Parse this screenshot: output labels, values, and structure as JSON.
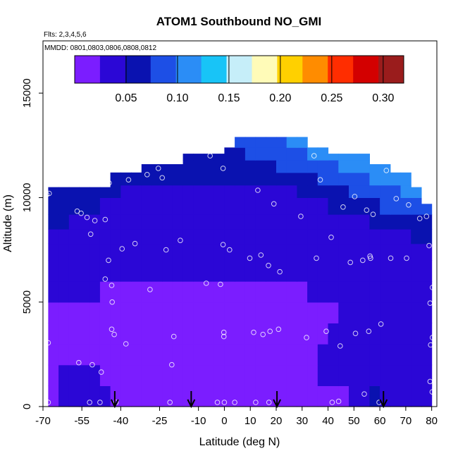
{
  "chart_data": {
    "type": "heatmap",
    "title": "ATOM1 Southbound NO_GMI",
    "annotations": {
      "flights": "Flts: 2,3,4,5,6",
      "dates": "MMDD: 0801,0803,0806,0808,0812"
    },
    "xlabel": "Latitude (deg N)",
    "ylabel": "Altitude (m)",
    "xlim": [
      -70,
      82
    ],
    "ylim": [
      0,
      17500
    ],
    "x_ticks": [
      {
        "value": -70,
        "label": "-70"
      },
      {
        "value": -55,
        "label": "-55"
      },
      {
        "value": -40,
        "label": "-40"
      },
      {
        "value": -25,
        "label": "-25"
      },
      {
        "value": -10,
        "label": "-10"
      },
      {
        "value": 0,
        "label": "0"
      },
      {
        "value": 10,
        "label": "10"
      },
      {
        "value": 20,
        "label": "20"
      },
      {
        "value": 30,
        "label": "30"
      },
      {
        "value": 40,
        "label": "40"
      },
      {
        "value": 50,
        "label": "50"
      },
      {
        "value": 60,
        "label": "60"
      },
      {
        "value": 70,
        "label": "70"
      },
      {
        "value": 80,
        "label": "80"
      }
    ],
    "y_ticks": [
      {
        "value": 0,
        "label": "0"
      },
      {
        "value": 5000,
        "label": "5000"
      },
      {
        "value": 10000,
        "label": "10000"
      },
      {
        "value": 15000,
        "label": "15000"
      }
    ],
    "colorbar": {
      "range": [
        0,
        0.32
      ],
      "tick_values": [
        0.05,
        0.1,
        0.15,
        0.2,
        0.25,
        0.3
      ],
      "tick_labels": [
        "0.05",
        "0.10",
        "0.15",
        "0.20",
        "0.25",
        "0.30"
      ],
      "bins": 13,
      "colors": [
        "#7b1dff",
        "#2b07d6",
        "#0a12b0",
        "#1d4fe6",
        "#2b8df6",
        "#18c4f7",
        "#c6eef9",
        "#fffbb8",
        "#ffd000",
        "#ff8c00",
        "#ff2d00",
        "#d30000",
        "#9a1c1c"
      ]
    },
    "field": {
      "lat_edges": [
        -68,
        -64,
        -60,
        -56,
        -52,
        -48,
        -44,
        -40,
        -36,
        -32,
        -28,
        -24,
        -20,
        -16,
        -12,
        -8,
        -4,
        0,
        4,
        8,
        12,
        16,
        20,
        24,
        28,
        32,
        36,
        40,
        44,
        48,
        52,
        56,
        60,
        64,
        68,
        72,
        76,
        80
      ],
      "alt_edges": [
        0,
        1000,
        2000,
        3000,
        4000,
        5000,
        6000,
        7000,
        7800,
        8500,
        9200,
        10000,
        10600,
        11200,
        11800,
        12400,
        12900,
        13300
      ],
      "tops": [
        10500,
        10500,
        10500,
        10500,
        10500,
        10500,
        11200,
        11200,
        11200,
        11600,
        11600,
        11600,
        11600,
        12100,
        12100,
        12100,
        12100,
        12400,
        12900,
        12900,
        12900,
        12900,
        12900,
        12900,
        12900,
        12400,
        12400,
        12100,
        12100,
        12100,
        12100,
        11600,
        11600,
        11200,
        11200,
        10500,
        9700
      ],
      "values": [
        [
          0.02,
          0.025,
          0.03,
          0.035,
          0.03,
          0.025,
          0.022,
          0.022,
          0.022,
          0.022,
          0.022,
          0.022,
          0.022,
          0.022,
          0.022,
          0.022,
          0.022,
          0.022,
          0.022,
          0.022,
          0.022,
          0.022,
          0.022,
          0.022,
          0.022,
          0.022,
          0.022,
          0.022,
          0.022,
          0.03,
          0.04,
          0.05,
          0.035,
          0.03,
          0.03,
          0.03,
          0.03
        ],
        [
          0.022,
          0.025,
          0.028,
          0.028,
          0.026,
          0.024,
          0.022,
          0.022,
          0.022,
          0.022,
          0.022,
          0.022,
          0.022,
          0.022,
          0.022,
          0.022,
          0.022,
          0.022,
          0.022,
          0.022,
          0.022,
          0.022,
          0.022,
          0.022,
          0.022,
          0.024,
          0.026,
          0.028,
          0.028,
          0.03,
          0.035,
          0.04,
          0.03,
          0.028,
          0.028,
          0.028,
          0.03
        ],
        [
          0.022,
          0.022,
          0.024,
          0.024,
          0.022,
          0.022,
          0.022,
          0.022,
          0.022,
          0.022,
          0.022,
          0.022,
          0.022,
          0.022,
          0.022,
          0.022,
          0.022,
          0.022,
          0.022,
          0.022,
          0.022,
          0.022,
          0.022,
          0.022,
          0.022,
          0.024,
          0.026,
          0.026,
          0.028,
          0.028,
          0.03,
          0.032,
          0.028,
          0.028,
          0.028,
          0.028,
          0.03
        ],
        [
          0.022,
          0.022,
          0.022,
          0.022,
          0.022,
          0.022,
          0.022,
          0.022,
          0.022,
          0.022,
          0.022,
          0.022,
          0.022,
          0.022,
          0.022,
          0.022,
          0.022,
          0.022,
          0.022,
          0.022,
          0.022,
          0.022,
          0.022,
          0.022,
          0.022,
          0.024,
          0.024,
          0.026,
          0.026,
          0.026,
          0.028,
          0.028,
          0.028,
          0.028,
          0.028,
          0.028,
          0.028
        ],
        [
          0.024,
          0.024,
          0.024,
          0.024,
          0.024,
          0.022,
          0.022,
          0.022,
          0.022,
          0.022,
          0.022,
          0.022,
          0.022,
          0.022,
          0.022,
          0.022,
          0.022,
          0.022,
          0.022,
          0.022,
          0.022,
          0.022,
          0.022,
          0.022,
          0.022,
          0.024,
          0.024,
          0.024,
          0.026,
          0.026,
          0.026,
          0.028,
          0.028,
          0.028,
          0.028,
          0.028,
          0.03
        ],
        [
          0.028,
          0.028,
          0.028,
          0.026,
          0.026,
          0.024,
          0.024,
          0.024,
          0.024,
          0.024,
          0.024,
          0.024,
          0.024,
          0.024,
          0.024,
          0.024,
          0.024,
          0.024,
          0.024,
          0.024,
          0.024,
          0.024,
          0.024,
          0.024,
          0.024,
          0.026,
          0.026,
          0.026,
          0.026,
          0.026,
          0.028,
          0.028,
          0.03,
          0.03,
          0.03,
          0.03,
          0.032
        ],
        [
          0.032,
          0.032,
          0.03,
          0.03,
          0.028,
          0.028,
          0.026,
          0.026,
          0.026,
          0.026,
          0.026,
          0.026,
          0.026,
          0.026,
          0.026,
          0.026,
          0.026,
          0.026,
          0.026,
          0.026,
          0.026,
          0.026,
          0.026,
          0.026,
          0.026,
          0.028,
          0.028,
          0.028,
          0.028,
          0.028,
          0.03,
          0.03,
          0.032,
          0.032,
          0.034,
          0.034,
          0.036
        ],
        [
          0.038,
          0.038,
          0.036,
          0.034,
          0.032,
          0.03,
          0.03,
          0.028,
          0.028,
          0.028,
          0.028,
          0.028,
          0.028,
          0.028,
          0.028,
          0.028,
          0.028,
          0.028,
          0.028,
          0.028,
          0.028,
          0.028,
          0.028,
          0.028,
          0.028,
          0.03,
          0.03,
          0.03,
          0.03,
          0.032,
          0.032,
          0.034,
          0.034,
          0.036,
          0.038,
          0.04,
          0.042
        ],
        [
          0.045,
          0.045,
          0.042,
          0.04,
          0.038,
          0.034,
          0.032,
          0.03,
          0.03,
          0.03,
          0.03,
          0.03,
          0.03,
          0.03,
          0.03,
          0.03,
          0.03,
          0.03,
          0.03,
          0.03,
          0.03,
          0.03,
          0.03,
          0.03,
          0.03,
          0.032,
          0.032,
          0.034,
          0.034,
          0.036,
          0.038,
          0.04,
          0.042,
          0.045,
          0.048,
          0.05,
          0.052
        ],
        [
          0.05,
          0.05,
          0.048,
          0.046,
          0.044,
          0.04,
          0.036,
          0.034,
          0.032,
          0.032,
          0.032,
          0.032,
          0.032,
          0.032,
          0.032,
          0.032,
          0.032,
          0.032,
          0.032,
          0.032,
          0.032,
          0.032,
          0.032,
          0.032,
          0.034,
          0.036,
          0.038,
          0.04,
          0.042,
          0.045,
          0.048,
          0.05,
          0.055,
          0.06,
          0.065,
          0.07,
          0.065
        ],
        [
          0.055,
          0.055,
          0.054,
          0.052,
          0.05,
          0.048,
          0.045,
          0.042,
          0.04,
          0.038,
          0.038,
          0.036,
          0.036,
          0.036,
          0.036,
          0.036,
          0.036,
          0.036,
          0.036,
          0.036,
          0.036,
          0.036,
          0.036,
          0.038,
          0.04,
          0.042,
          0.045,
          0.05,
          0.055,
          0.06,
          0.065,
          0.07,
          0.075,
          0.08,
          0.085,
          0.09,
          0.08
        ],
        [
          0.06,
          0.06,
          0.058,
          0.056,
          0.054,
          0.052,
          0.05,
          0.048,
          0.046,
          0.046,
          0.045,
          0.045,
          0.045,
          0.045,
          0.045,
          0.045,
          0.045,
          0.045,
          0.045,
          0.045,
          0.045,
          0.045,
          0.045,
          0.048,
          0.05,
          0.055,
          0.06,
          0.065,
          0.07,
          0.075,
          0.08,
          0.085,
          0.09,
          0.095,
          0.1,
          0.1,
          0.09
        ],
        [
          0.065,
          0.065,
          0.064,
          0.062,
          0.06,
          0.058,
          0.056,
          0.054,
          0.052,
          0.052,
          0.052,
          0.052,
          0.052,
          0.052,
          0.052,
          0.052,
          0.052,
          0.052,
          0.052,
          0.052,
          0.052,
          0.052,
          0.055,
          0.06,
          0.065,
          0.07,
          0.075,
          0.08,
          0.085,
          0.09,
          0.095,
          0.1,
          0.105,
          0.11,
          0.11,
          0.11,
          0.1
        ],
        [
          0.07,
          0.07,
          0.068,
          0.066,
          0.064,
          0.062,
          0.06,
          0.06,
          0.06,
          0.06,
          0.06,
          0.06,
          0.06,
          0.06,
          0.06,
          0.06,
          0.06,
          0.062,
          0.065,
          0.068,
          0.07,
          0.072,
          0.075,
          0.078,
          0.08,
          0.085,
          0.09,
          0.095,
          0.1,
          0.105,
          0.11,
          0.115,
          0.12,
          0.12,
          0.12,
          0.12,
          0.11
        ],
        [
          0.07,
          0.07,
          0.07,
          0.07,
          0.07,
          0.07,
          0.065,
          0.065,
          0.065,
          0.065,
          0.065,
          0.065,
          0.065,
          0.065,
          0.065,
          0.065,
          0.065,
          0.068,
          0.07,
          0.075,
          0.078,
          0.08,
          0.085,
          0.09,
          0.095,
          0.1,
          0.105,
          0.11,
          0.11,
          0.11,
          0.11,
          0.11,
          0.11,
          0.11,
          0.11,
          0.11,
          0.11
        ],
        [
          0.07,
          0.07,
          0.07,
          0.07,
          0.07,
          0.07,
          0.07,
          0.07,
          0.07,
          0.07,
          0.07,
          0.07,
          0.07,
          0.07,
          0.07,
          0.07,
          0.07,
          0.07,
          0.075,
          0.08,
          0.085,
          0.09,
          0.095,
          0.1,
          0.1,
          0.1,
          0.1,
          0.1,
          0.1,
          0.1,
          0.1,
          0.1,
          0.1,
          0.1,
          0.1,
          0.1,
          0.1
        ],
        [
          0.07,
          0.07,
          0.07,
          0.07,
          0.07,
          0.07,
          0.07,
          0.07,
          0.07,
          0.07,
          0.07,
          0.07,
          0.07,
          0.07,
          0.07,
          0.07,
          0.07,
          0.07,
          0.075,
          0.08,
          0.085,
          0.09,
          0.095,
          0.1,
          0.1,
          0.1,
          0.1,
          0.1,
          0.1,
          0.1,
          0.1,
          0.1,
          0.1,
          0.1,
          0.1,
          0.1,
          0.1
        ]
      ]
    },
    "arrows_at_latitude": [
      -42.3,
      -12.8,
      20.3,
      61.4
    ],
    "sample_points": [
      [
        -68.5,
        10150
      ],
      [
        -67.6,
        10200
      ],
      [
        -68,
        3050
      ],
      [
        -68,
        200
      ],
      [
        -56.8,
        9350
      ],
      [
        -55.3,
        9250
      ],
      [
        -53,
        9050
      ],
      [
        -50,
        8900
      ],
      [
        -51.6,
        8250
      ],
      [
        -56.2,
        2100
      ],
      [
        -51,
        2000
      ],
      [
        -47.5,
        1650
      ],
      [
        -52,
        200
      ],
      [
        -48,
        200
      ],
      [
        -45.7,
        11600
      ],
      [
        -44.5,
        10700
      ],
      [
        -46,
        8950
      ],
      [
        -39.5,
        7550
      ],
      [
        -44.7,
        7000
      ],
      [
        -46,
        6100
      ],
      [
        -43.5,
        5800
      ],
      [
        -43.3,
        5000
      ],
      [
        -43.5,
        3700
      ],
      [
        -42.5,
        3450
      ],
      [
        -38,
        3000
      ],
      [
        -41.8,
        200
      ],
      [
        -37,
        10850
      ],
      [
        -34.5,
        7800
      ],
      [
        -29.8,
        11100
      ],
      [
        -25.5,
        11400
      ],
      [
        -24,
        10950
      ],
      [
        -28.7,
        5600
      ],
      [
        -22.5,
        7500
      ],
      [
        -17,
        7950
      ],
      [
        -19.5,
        3350
      ],
      [
        -20.3,
        2000
      ],
      [
        -21,
        200
      ],
      [
        -5.5,
        12000
      ],
      [
        -7,
        5900
      ],
      [
        -1.5,
        5850
      ],
      [
        -2.7,
        200
      ],
      [
        -0.5,
        11400
      ],
      [
        -0.5,
        7750
      ],
      [
        2,
        7500
      ],
      [
        -0.2,
        3550
      ],
      [
        -0.2,
        3350
      ],
      [
        0,
        200
      ],
      [
        4,
        200
      ],
      [
        9.8,
        7100
      ],
      [
        12.9,
        10350
      ],
      [
        14.1,
        7250
      ],
      [
        17,
        6750
      ],
      [
        11.3,
        3550
      ],
      [
        14.9,
        3450
      ],
      [
        17.6,
        3600
      ],
      [
        20.9,
        3700
      ],
      [
        12.1,
        200
      ],
      [
        17.2,
        200
      ],
      [
        19.1,
        9700
      ],
      [
        21.4,
        6450
      ],
      [
        29.5,
        9100
      ],
      [
        31.7,
        3300
      ],
      [
        34.6,
        12000
      ],
      [
        37,
        10850
      ],
      [
        35.5,
        7100
      ],
      [
        41.2,
        8100
      ],
      [
        39.3,
        3600
      ],
      [
        44.7,
        2900
      ],
      [
        45.8,
        9550
      ],
      [
        48.6,
        6900
      ],
      [
        50.3,
        10050
      ],
      [
        54.9,
        9400
      ],
      [
        56.4,
        7100
      ],
      [
        53.4,
        7000
      ],
      [
        50.6,
        3500
      ],
      [
        55.7,
        3600
      ],
      [
        57.4,
        9200
      ],
      [
        56.2,
        7200
      ],
      [
        60.4,
        3950
      ],
      [
        62.5,
        11300
      ],
      [
        64.2,
        7100
      ],
      [
        66.3,
        9950
      ],
      [
        71.1,
        9650
      ],
      [
        70.3,
        7100
      ],
      [
        79,
        7700
      ],
      [
        80.3,
        5700
      ],
      [
        79.4,
        4950
      ],
      [
        80.3,
        3300
      ],
      [
        79.6,
        2950
      ],
      [
        79.4,
        1200
      ],
      [
        80.2,
        700
      ],
      [
        78,
        9100
      ],
      [
        75.4,
        9000
      ],
      [
        41.6,
        200
      ],
      [
        44.1,
        250
      ],
      [
        54,
        600
      ],
      [
        59.7,
        200
      ]
    ]
  }
}
